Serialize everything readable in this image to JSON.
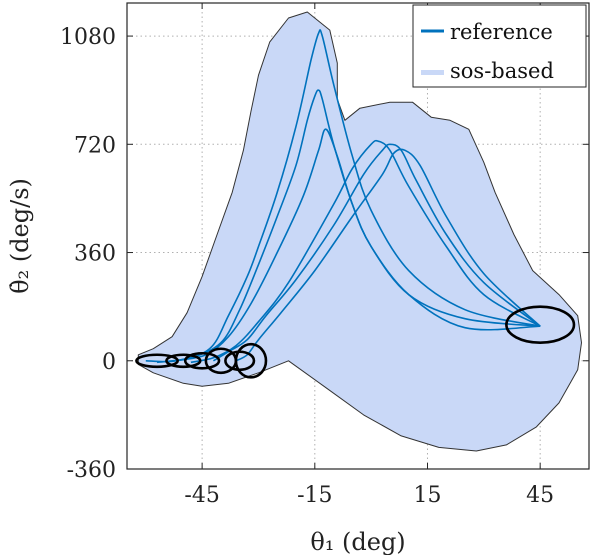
{
  "chart_data": {
    "type": "line",
    "xlabel": "θ₁ (deg)",
    "ylabel": "θ̇₂ (deg/s)",
    "xlim": [
      -65,
      58
    ],
    "ylim": [
      -360,
      1190
    ],
    "xticks": [
      -45,
      -15,
      15,
      45
    ],
    "yticks": [
      -360,
      0,
      360,
      720,
      1080
    ],
    "xtick_labels": [
      "-45",
      "-15",
      "15",
      "45"
    ],
    "ytick_labels": [
      "-360",
      "0",
      "360",
      "720",
      "1080"
    ],
    "grid": true,
    "legend": {
      "placement": "top-right",
      "entries": [
        {
          "label": "reference",
          "color": "#0072BD",
          "kind": "line"
        },
        {
          "label": "sos-based",
          "color": "#C9D8F7",
          "kind": "patch"
        }
      ]
    },
    "colors": {
      "reference": "#0072BD",
      "region_fill": "#C9D8F7",
      "region_edge": "#333333",
      "ellipse": "#000000",
      "grid": "#b0b0b0"
    },
    "region_boundary": [
      [
        -62,
        -12
      ],
      [
        -58,
        -40
      ],
      [
        -50,
        -75
      ],
      [
        -45,
        -85
      ],
      [
        -38,
        -75
      ],
      [
        -30,
        -40
      ],
      [
        -22,
        0
      ],
      [
        -12,
        -90
      ],
      [
        -2,
        -180
      ],
      [
        8,
        -250
      ],
      [
        18,
        -288
      ],
      [
        28,
        -300
      ],
      [
        36,
        -280
      ],
      [
        44,
        -220
      ],
      [
        50,
        -140
      ],
      [
        55,
        -30
      ],
      [
        56,
        60
      ],
      [
        55,
        150
      ],
      [
        50,
        220
      ],
      [
        43,
        300
      ],
      [
        38,
        420
      ],
      [
        33,
        560
      ],
      [
        30,
        660
      ],
      [
        26,
        770
      ],
      [
        21,
        800
      ],
      [
        16,
        810
      ],
      [
        11,
        860
      ],
      [
        5,
        860
      ],
      [
        -3,
        840
      ],
      [
        -7,
        800
      ],
      [
        -9,
        870
      ],
      [
        -9,
        990
      ],
      [
        -11,
        1100
      ],
      [
        -17,
        1160
      ],
      [
        -22,
        1140
      ],
      [
        -27,
        1060
      ],
      [
        -30,
        950
      ],
      [
        -32,
        830
      ],
      [
        -34,
        700
      ],
      [
        -37,
        560
      ],
      [
        -41,
        420
      ],
      [
        -45,
        280
      ],
      [
        -49,
        160
      ],
      [
        -53,
        80
      ],
      [
        -58,
        40
      ],
      [
        -62,
        20
      ]
    ],
    "series": [
      {
        "name": "reference",
        "x": [
          -60,
          -52,
          -43,
          -38,
          -33,
          -30,
          -25,
          -20,
          -16,
          -14,
          -13,
          -10,
          -5,
          0,
          10,
          25,
          45
        ],
        "y": [
          0,
          0,
          40,
          150,
          280,
          380,
          560,
          780,
          1000,
          1090,
          1080,
          920,
          680,
          500,
          300,
          170,
          115
        ]
      },
      {
        "x": [
          -57,
          -48,
          -40,
          -35,
          -30,
          -25,
          -20,
          -17,
          -15,
          -14,
          -13,
          -10,
          -5,
          0,
          10,
          25,
          45
        ],
        "y": [
          -5,
          10,
          60,
          170,
          320,
          480,
          650,
          800,
          880,
          900,
          870,
          720,
          520,
          380,
          220,
          140,
          115
        ]
      },
      {
        "x": [
          -52,
          -44,
          -38,
          -32,
          -25,
          -18,
          -14,
          -12,
          -9,
          -5,
          0,
          10,
          25,
          45
        ],
        "y": [
          0,
          20,
          80,
          190,
          360,
          550,
          700,
          770,
          680,
          520,
          380,
          220,
          110,
          115
        ]
      },
      {
        "x": [
          -48,
          -42,
          -36,
          -30,
          -22,
          -10,
          -5,
          0,
          2,
          5,
          10,
          20,
          30,
          45
        ],
        "y": [
          -5,
          10,
          50,
          130,
          260,
          520,
          640,
          720,
          730,
          700,
          580,
          380,
          220,
          115
        ]
      },
      {
        "x": [
          -42,
          -38,
          -33,
          -28,
          -20,
          -10,
          -2,
          3,
          5,
          8,
          12,
          20,
          30,
          45
        ],
        "y": [
          0,
          30,
          70,
          150,
          270,
          450,
          620,
          700,
          720,
          700,
          600,
          420,
          260,
          115
        ]
      },
      {
        "x": [
          -36,
          -33,
          -30,
          -24,
          -15,
          -5,
          3,
          6,
          9,
          13,
          20,
          30,
          45
        ],
        "y": [
          0,
          20,
          70,
          160,
          300,
          480,
          620,
          690,
          700,
          650,
          480,
          290,
          115
        ]
      }
    ],
    "ellipses": [
      {
        "cx": -57,
        "cy": 0,
        "rx": 5.5,
        "ry": 20
      },
      {
        "cx": -50,
        "cy": 0,
        "rx": 4.5,
        "ry": 20
      },
      {
        "cx": -45,
        "cy": 0,
        "rx": 4.5,
        "ry": 25
      },
      {
        "cx": -40,
        "cy": 0,
        "rx": 4,
        "ry": 40
      },
      {
        "cx": -35,
        "cy": 0,
        "rx": 3.8,
        "ry": 30
      },
      {
        "cx": -32,
        "cy": 0,
        "rx": 4,
        "ry": 55
      },
      {
        "cx": 45,
        "cy": 120,
        "rx": 9,
        "ry": 60
      }
    ]
  }
}
